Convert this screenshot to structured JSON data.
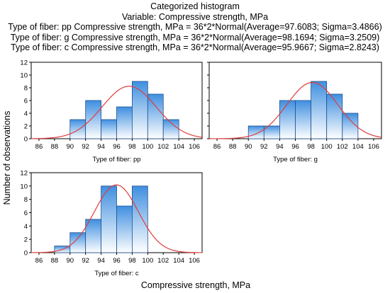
{
  "chart_data": {
    "type": "bar",
    "title": "Categorized histogram",
    "subtitle": "Variable: Compressive strength, MPa",
    "fit_lines": [
      "Type of fiber: pp Compressive strength, MPa = 36*2*Normal(Average=97.6083; Sigma=3.4866)",
      "Type of fiber: g Compressive strength, MPa = 36*2*Normal(Average=98.1694; Sigma=3.2509)",
      "Type of fiber: c Compressive strength, MPa = 36*2*Normal(Average=95.9667; Sigma=2.8243)"
    ],
    "xlabel": "Compressive strength, MPa",
    "ylabel": "Number of observations",
    "xlim": [
      85,
      107
    ],
    "ylim": [
      0,
      12
    ],
    "xticks": [
      "86",
      "88",
      "90",
      "92",
      "94",
      "96",
      "98",
      "100",
      "102",
      "104",
      "106"
    ],
    "yticks": [
      "0",
      "2",
      "4",
      "6",
      "8",
      "10",
      "12"
    ],
    "bin_width": 2,
    "bar_color": "#3f8fe0",
    "curve_color": "#e03c3c",
    "panels": [
      {
        "label": "Type of fiber: pp",
        "bins": [
          {
            "from": 90,
            "to": 92,
            "count": 3
          },
          {
            "from": 92,
            "to": 94,
            "count": 6
          },
          {
            "from": 94,
            "to": 96,
            "count": 3
          },
          {
            "from": 96,
            "to": 98,
            "count": 5
          },
          {
            "from": 98,
            "to": 100,
            "count": 9
          },
          {
            "from": 100,
            "to": 102,
            "count": 7
          },
          {
            "from": 102,
            "to": 104,
            "count": 3
          }
        ],
        "normal_fit": {
          "scale": 72,
          "average": 97.6083,
          "sigma": 3.4866
        }
      },
      {
        "label": "Type of fiber: g",
        "bins": [
          {
            "from": 90,
            "to": 92,
            "count": 2
          },
          {
            "from": 92,
            "to": 94,
            "count": 2
          },
          {
            "from": 94,
            "to": 96,
            "count": 6
          },
          {
            "from": 96,
            "to": 98,
            "count": 6
          },
          {
            "from": 98,
            "to": 100,
            "count": 9
          },
          {
            "from": 100,
            "to": 102,
            "count": 7
          },
          {
            "from": 102,
            "to": 104,
            "count": 4
          }
        ],
        "normal_fit": {
          "scale": 72,
          "average": 98.1694,
          "sigma": 3.2509
        }
      },
      {
        "label": "Type of fiber: c",
        "bins": [
          {
            "from": 88,
            "to": 90,
            "count": 1
          },
          {
            "from": 90,
            "to": 92,
            "count": 3
          },
          {
            "from": 92,
            "to": 94,
            "count": 5
          },
          {
            "from": 94,
            "to": 96,
            "count": 10
          },
          {
            "from": 96,
            "to": 98,
            "count": 7
          },
          {
            "from": 98,
            "to": 100,
            "count": 10
          }
        ],
        "normal_fit": {
          "scale": 72,
          "average": 95.9667,
          "sigma": 2.8243
        }
      }
    ]
  }
}
